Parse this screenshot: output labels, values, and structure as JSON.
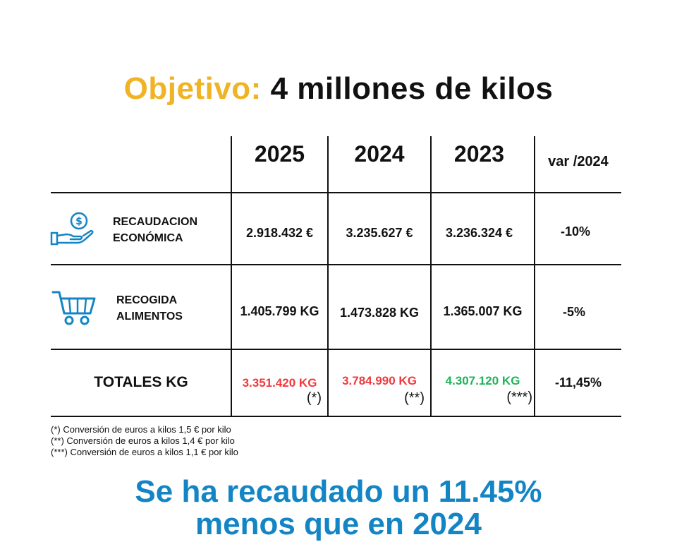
{
  "title": {
    "highlight": "Objetivo:",
    "rest": "4 millones de kilos"
  },
  "table": {
    "years": [
      "2025",
      "2024",
      "2023"
    ],
    "var_header": "var /2024",
    "rows": [
      {
        "icon": "money-hand-icon",
        "label_line1": "RECAUDACION",
        "label_line2": "ECONÓMICA",
        "values": [
          "2.918.432 €",
          "3.235.627 €",
          "3.236.324 €"
        ],
        "var": "-10%"
      },
      {
        "icon": "shopping-cart-icon",
        "label_line1": "RECOGIDA",
        "label_line2": "ALIMENTOS",
        "values": [
          "1.405.799 KG",
          "1.473.828 KG",
          "1.365.007 KG"
        ],
        "var": "-5%"
      }
    ],
    "totals": {
      "label": "TOTALES KG",
      "values": [
        "3.351.420 KG",
        "3.784.990 KG",
        "4.307.120 KG"
      ],
      "notes": [
        "(*)",
        "(**)",
        "(***)"
      ],
      "var": "-11,45%",
      "colors": [
        "#f0393d",
        "#f0393d",
        "#1fb35a"
      ]
    }
  },
  "footnotes": [
    "(*) Conversión de euros a kilos 1,5 € por kilo",
    "(**) Conversión de euros a kilos 1,4 € por kilo",
    "(***) Conversión de euros a kilos 1,1 € por kilo"
  ],
  "bottom_message": {
    "line1": "Se ha recaudado un 11.45%",
    "line2": "menos que en 2024"
  },
  "colors": {
    "title_highlight": "#f0b323",
    "accent_blue": "#1385c4",
    "red": "#f0393d",
    "green": "#1fb35a"
  }
}
